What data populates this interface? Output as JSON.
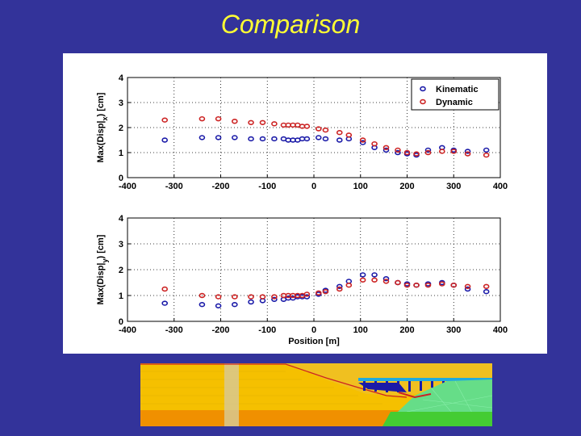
{
  "slide": {
    "title": "Comparison"
  },
  "colors": {
    "background": "#33339a",
    "title": "#ffff33",
    "kinematic": "#1a1aa8",
    "dynamic": "#cc2222"
  },
  "chart_data": [
    {
      "type": "scatter",
      "title": "",
      "xlabel": "",
      "ylabel": "Max(Disp|_x) [cm]",
      "ylabel_main": "Max(Disp|",
      "ylabel_sub": "x",
      "ylabel_end": ") [cm]",
      "xlim": [
        -400,
        400
      ],
      "ylim": [
        0,
        4
      ],
      "xticks": [
        -400,
        -300,
        -200,
        -100,
        0,
        100,
        200,
        300,
        400
      ],
      "yticks": [
        0,
        1,
        2,
        3,
        4
      ],
      "grid": true,
      "legend": "top-right",
      "series": [
        {
          "name": "Kinematic",
          "x": [
            -320,
            -240,
            -205,
            -170,
            -135,
            -110,
            -85,
            -65,
            -55,
            -45,
            -35,
            -25,
            -15,
            10,
            25,
            55,
            75,
            105,
            130,
            155,
            180,
            200,
            220,
            245,
            275,
            300,
            330,
            370
          ],
          "y": [
            1.5,
            1.6,
            1.6,
            1.6,
            1.55,
            1.55,
            1.55,
            1.55,
            1.5,
            1.5,
            1.5,
            1.55,
            1.55,
            1.6,
            1.55,
            1.5,
            1.55,
            1.4,
            1.2,
            1.1,
            1.0,
            0.95,
            0.9,
            1.1,
            1.2,
            1.1,
            1.05,
            1.1
          ]
        },
        {
          "name": "Dynamic",
          "x": [
            -320,
            -240,
            -205,
            -170,
            -135,
            -110,
            -85,
            -65,
            -55,
            -45,
            -35,
            -25,
            -15,
            10,
            25,
            55,
            75,
            105,
            130,
            155,
            180,
            200,
            220,
            245,
            275,
            300,
            330,
            370
          ],
          "y": [
            2.3,
            2.35,
            2.35,
            2.25,
            2.2,
            2.2,
            2.15,
            2.1,
            2.1,
            2.1,
            2.1,
            2.05,
            2.05,
            1.95,
            1.9,
            1.8,
            1.7,
            1.5,
            1.35,
            1.2,
            1.1,
            1.0,
            0.95,
            1.0,
            1.05,
            1.05,
            0.95,
            0.9
          ]
        }
      ]
    },
    {
      "type": "scatter",
      "title": "",
      "xlabel": "Position [m]",
      "ylabel": "Max(Disp|_y) [cm]",
      "ylabel_main": "Max(Disp|",
      "ylabel_sub": "y",
      "ylabel_end": ") [cm]",
      "xlim": [
        -400,
        400
      ],
      "ylim": [
        0,
        4
      ],
      "xticks": [
        -400,
        -300,
        -200,
        -100,
        0,
        100,
        200,
        300,
        400
      ],
      "yticks": [
        0,
        1,
        2,
        3,
        4
      ],
      "grid": true,
      "series": [
        {
          "name": "Kinematic",
          "x": [
            -320,
            -240,
            -205,
            -170,
            -135,
            -110,
            -85,
            -65,
            -55,
            -45,
            -35,
            -25,
            -15,
            10,
            25,
            55,
            75,
            105,
            130,
            155,
            180,
            200,
            220,
            245,
            275,
            300,
            330,
            370
          ],
          "y": [
            0.7,
            0.65,
            0.6,
            0.65,
            0.75,
            0.8,
            0.85,
            0.85,
            0.9,
            0.9,
            0.95,
            0.95,
            0.95,
            1.05,
            1.2,
            1.35,
            1.55,
            1.8,
            1.8,
            1.65,
            1.5,
            1.45,
            1.4,
            1.45,
            1.5,
            1.4,
            1.25,
            1.15
          ]
        },
        {
          "name": "Dynamic",
          "x": [
            -320,
            -240,
            -205,
            -170,
            -135,
            -110,
            -85,
            -65,
            -55,
            -45,
            -35,
            -25,
            -15,
            10,
            25,
            55,
            75,
            105,
            130,
            155,
            180,
            200,
            220,
            245,
            275,
            300,
            330,
            370
          ],
          "y": [
            1.25,
            1.0,
            0.95,
            0.95,
            0.95,
            0.95,
            0.95,
            1.0,
            1.0,
            1.0,
            1.0,
            1.0,
            1.05,
            1.1,
            1.15,
            1.25,
            1.4,
            1.6,
            1.6,
            1.55,
            1.5,
            1.4,
            1.4,
            1.4,
            1.45,
            1.4,
            1.35,
            1.35
          ]
        }
      ]
    }
  ],
  "section_image": {
    "icon": "soil-profile-cross-section"
  }
}
